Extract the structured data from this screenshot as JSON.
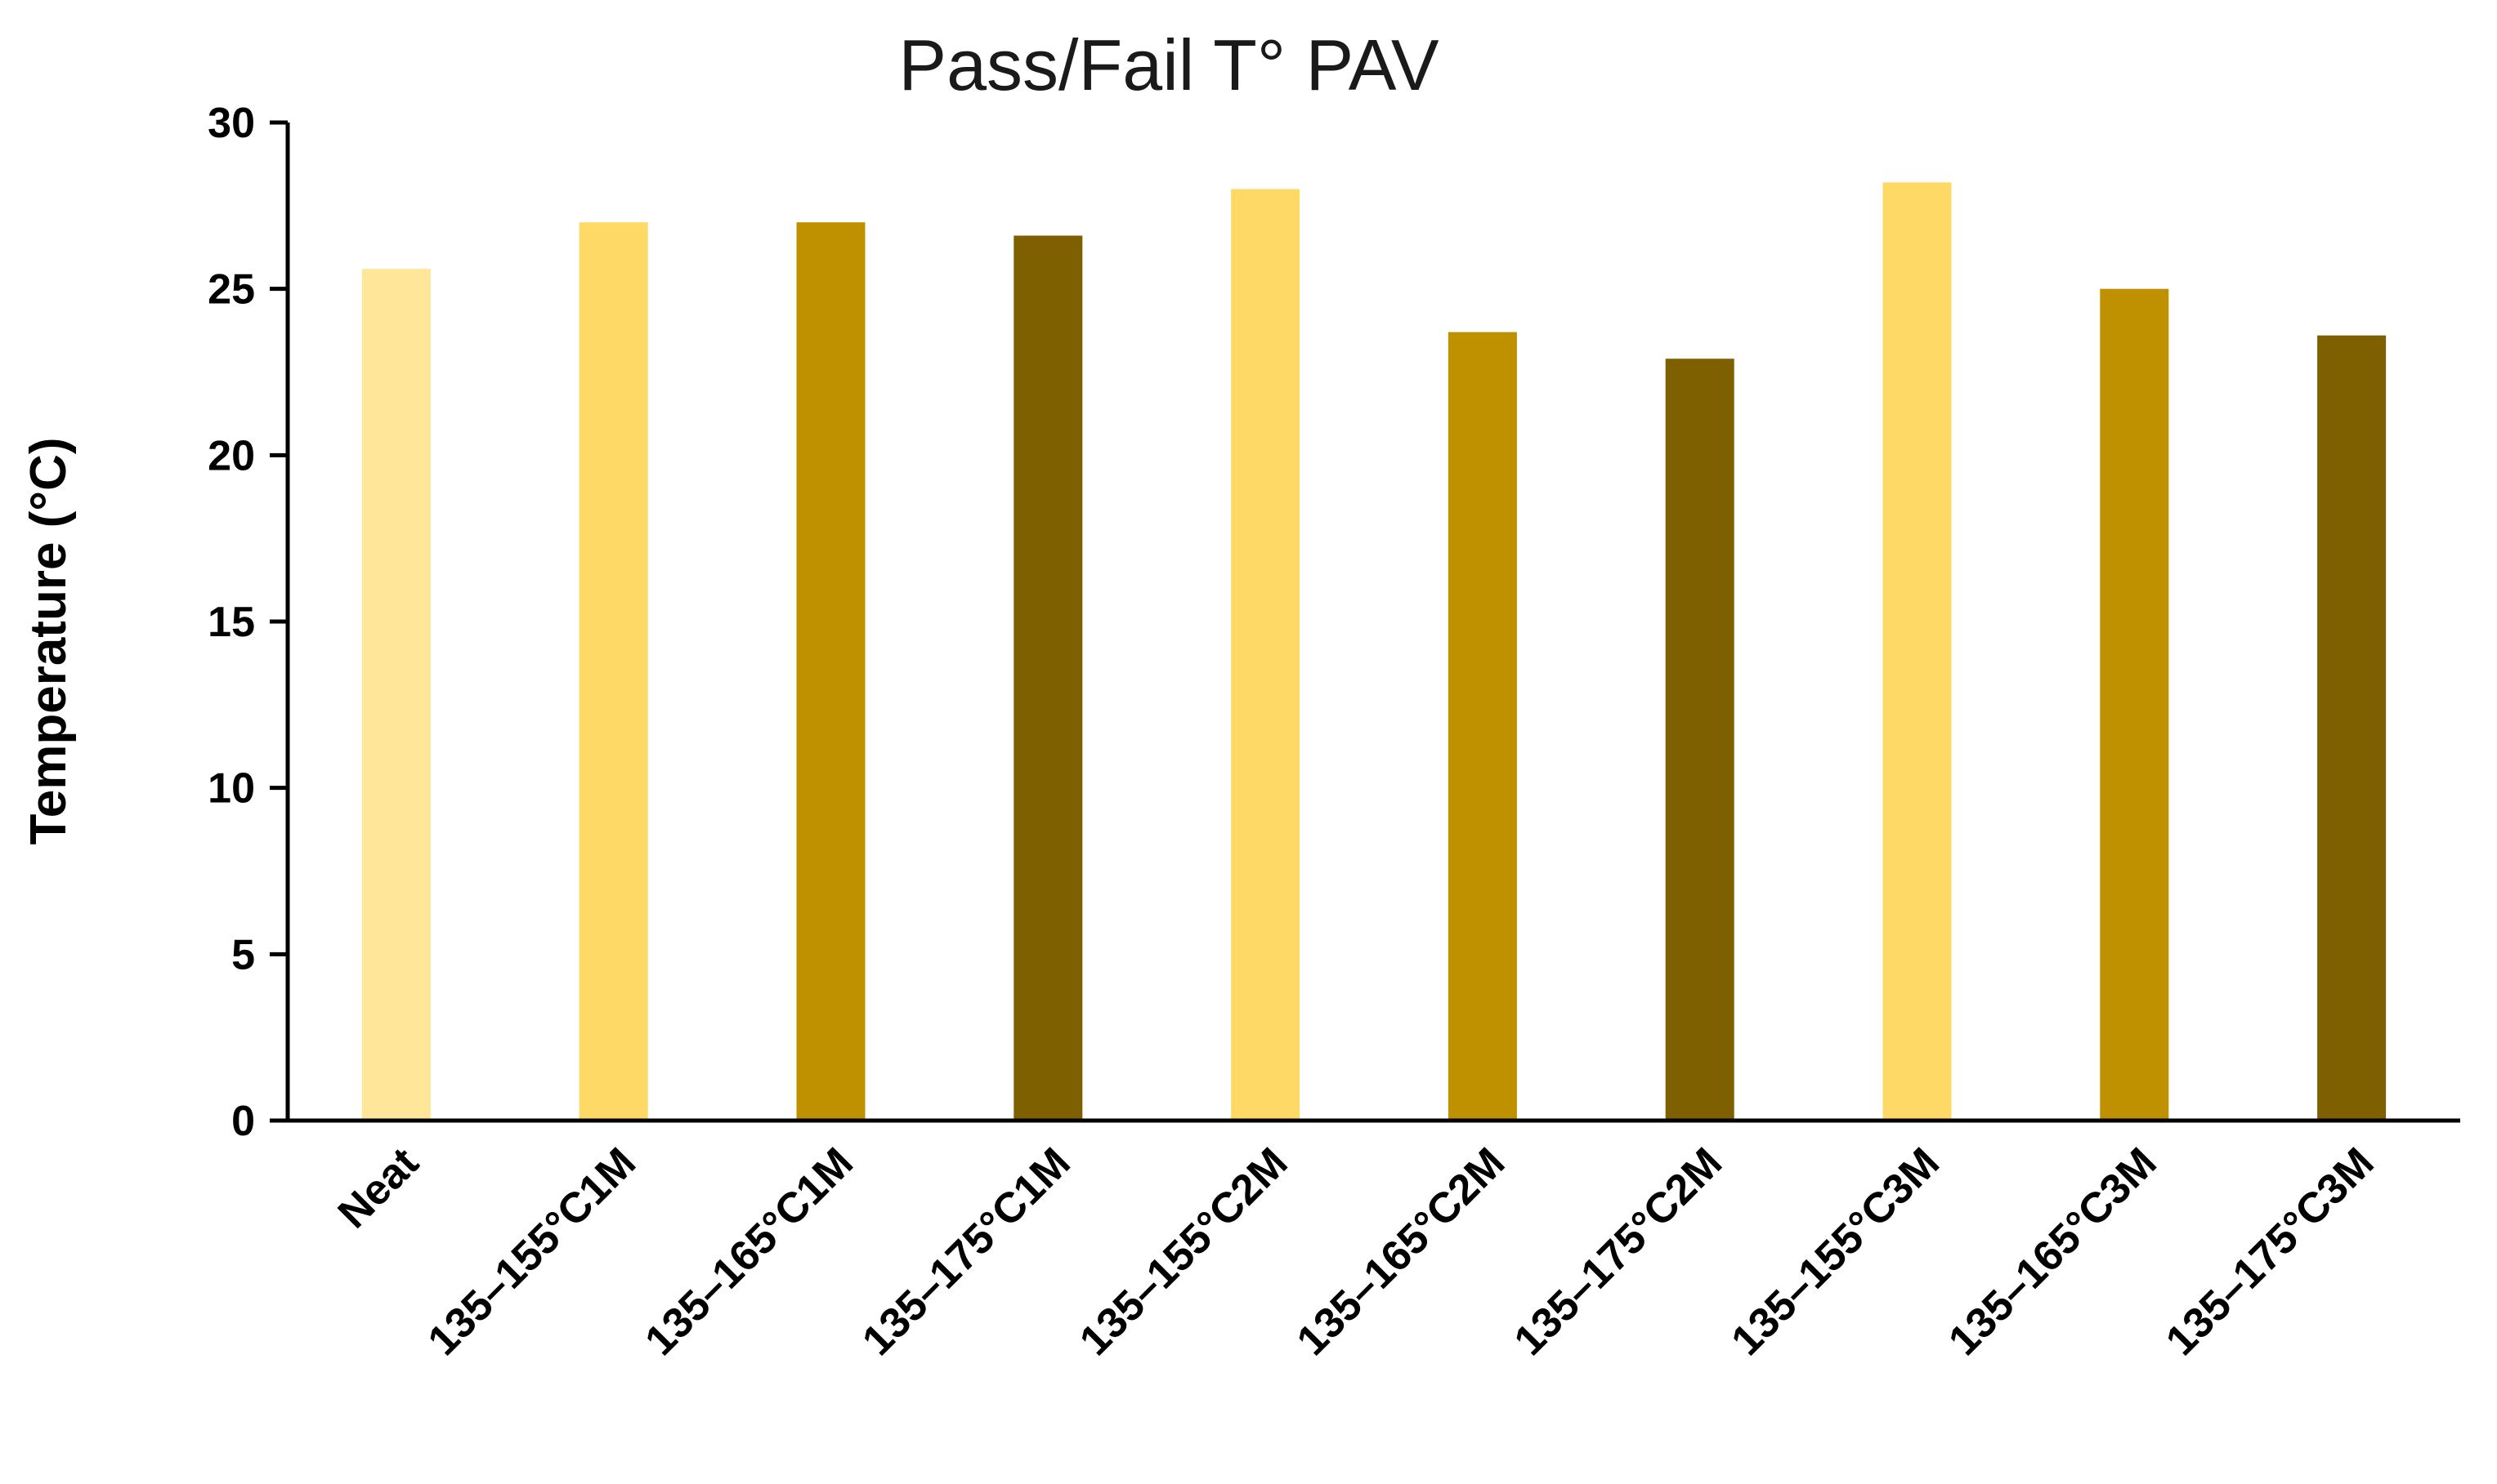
{
  "chart_data": {
    "type": "bar",
    "title": "Pass/Fail T° PAV",
    "xlabel": "",
    "ylabel": "Temperature (°C)",
    "ylim": [
      0,
      30
    ],
    "yticks": [
      0,
      5,
      10,
      15,
      20,
      25,
      30
    ],
    "grid": false,
    "legend": "none",
    "categories": [
      "Neat",
      "135–155°C1M",
      "135–165°C1M",
      "135–175°C1M",
      "135–155°C2M",
      "135–165°C2M",
      "135–175°C2M",
      "135–155°C3M",
      "135–165°C3M",
      "135–175°C3M"
    ],
    "values": [
      25.6,
      27.0,
      27.0,
      26.6,
      28.0,
      23.7,
      22.9,
      28.2,
      25.0,
      23.6
    ],
    "colors": [
      "#FFE699",
      "#FFD966",
      "#BF9000",
      "#7F6000",
      "#FFD966",
      "#BF9000",
      "#7F6000",
      "#FFD966",
      "#BF9000",
      "#7F6000"
    ]
  }
}
